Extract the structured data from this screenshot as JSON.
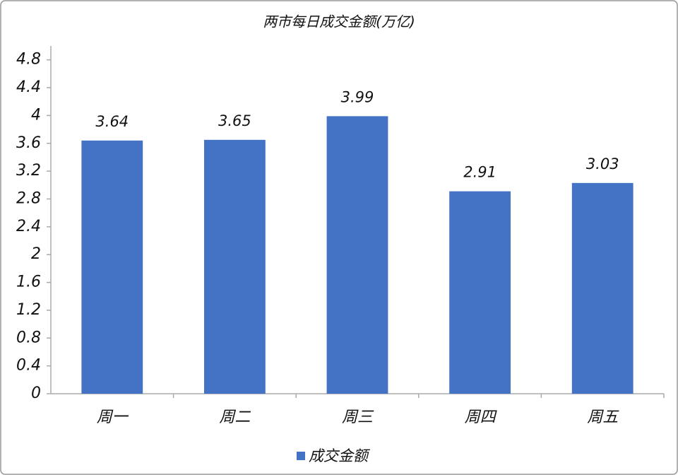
{
  "chart_data": {
    "type": "bar",
    "title": "两市每日成交金额(万亿)",
    "categories": [
      "周一",
      "周二",
      "周三",
      "周四",
      "周五"
    ],
    "series": [
      {
        "name": "成交金额",
        "color": "#4472c4",
        "values": [
          3.64,
          3.65,
          3.99,
          2.91,
          3.03
        ]
      }
    ],
    "ylim": [
      0,
      5
    ],
    "yticks": [
      0,
      0.4,
      0.8,
      1.2,
      1.6,
      2,
      2.4,
      2.8,
      3.2,
      3.6,
      4,
      4.4,
      4.8
    ],
    "legend": "bottom",
    "grid": false,
    "data_labels": true
  }
}
